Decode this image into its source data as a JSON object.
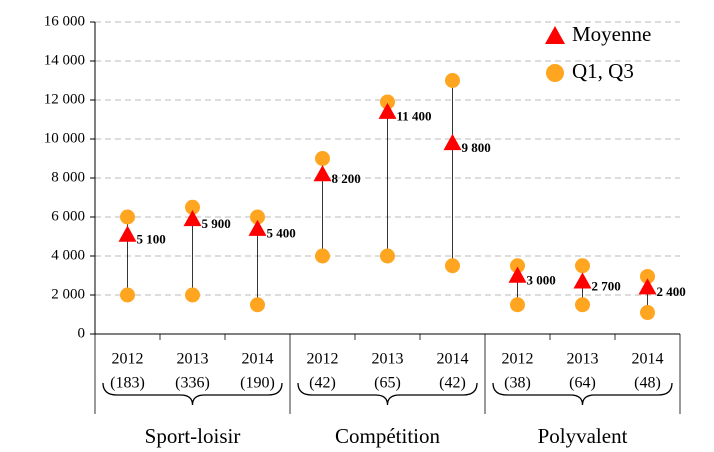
{
  "chart_data": {
    "type": "range",
    "categories": [
      "2012",
      "2013",
      "2014",
      "2012",
      "2013",
      "2014",
      "2012",
      "2013",
      "2014"
    ],
    "sample_sizes": [
      "(183)",
      "(336)",
      "(190)",
      "(42)",
      "(65)",
      "(42)",
      "(38)",
      "(64)",
      "(48)"
    ],
    "groups": [
      "Sport-loisir",
      "Compétition",
      "Polyvalent"
    ],
    "series": [
      {
        "name": "Moyenne",
        "color": "#ff0000",
        "marker": "triangle",
        "values": [
          5100,
          5900,
          5400,
          8200,
          11400,
          9800,
          3000,
          2700,
          2400
        ],
        "value_labels": [
          "5 100",
          "5 900",
          "5 400",
          "8 200",
          "11 400",
          "9 800",
          "3 000",
          "2 700",
          "2 400"
        ]
      },
      {
        "name": "Q1, Q3",
        "color": "#ffa51f",
        "marker": "circle",
        "values": [
          2000,
          2000,
          1500,
          4000,
          4000,
          3500,
          1500,
          1500,
          1100
        ],
        "values_high": [
          6000,
          6500,
          6000,
          9000,
          11900,
          13000,
          3500,
          3500,
          2950
        ]
      }
    ],
    "ylim": [
      0,
      16000
    ],
    "yticks": [
      0,
      {
        "value": 2000,
        "label": "2 000"
      },
      {
        "value": 4000,
        "label": "4 000"
      },
      {
        "value": 6000,
        "label": "6 000"
      },
      {
        "value": 8000,
        "label": "8 000"
      },
      {
        "value": 10000,
        "label": "10 000"
      },
      {
        "value": 12000,
        "label": "12 000"
      },
      {
        "value": 14000,
        "label": "14 000"
      },
      {
        "value": 16000,
        "label": "16 000"
      }
    ],
    "grid": true,
    "legend": "top-right"
  }
}
